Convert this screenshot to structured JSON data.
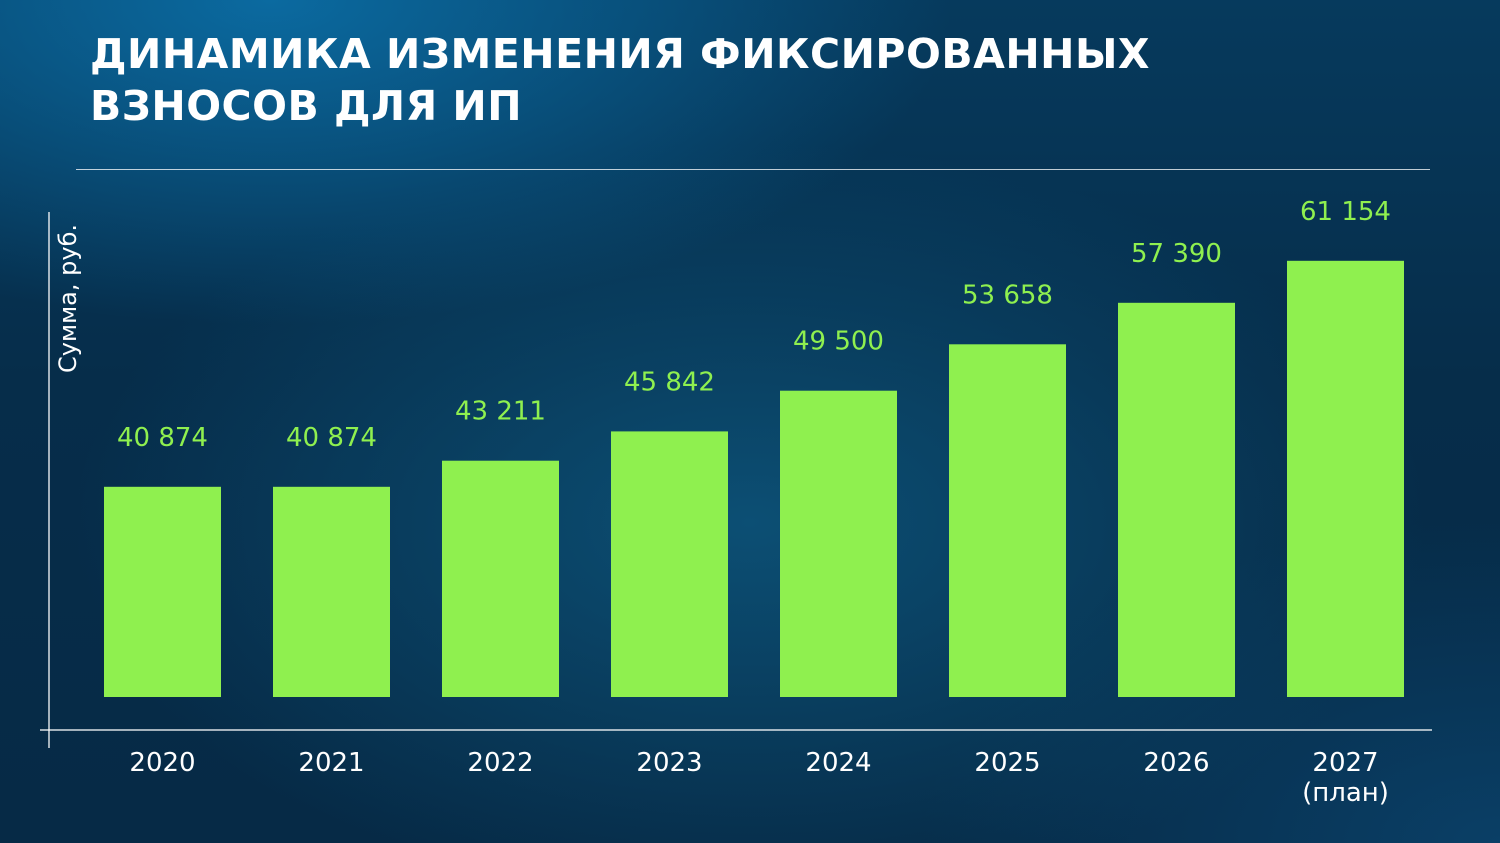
{
  "title_lines": [
    "ДИНАМИКА ИЗМЕНЕНИЯ ФИКСИРОВАННЫХ",
    "ВЗНОСОВ ДЛЯ ИП"
  ],
  "colors": {
    "bar": "#8ff04f",
    "value_label": "#8ff04f",
    "text": "#ffffff",
    "background": "#06304f"
  },
  "chart_data": {
    "type": "bar",
    "title": "ДИНАМИКА ИЗМЕНЕНИЯ ФИКСИРОВАННЫХ ВЗНОСОВ ДЛЯ ИП",
    "xlabel": "",
    "ylabel": "Сумма, руб.",
    "categories": [
      [
        "2020"
      ],
      [
        "2021"
      ],
      [
        "2022"
      ],
      [
        "2023"
      ],
      [
        "2024"
      ],
      [
        "2025"
      ],
      [
        "2026"
      ],
      [
        "2027",
        "(план)"
      ]
    ],
    "values": [
      40874,
      40874,
      43211,
      45842,
      49500,
      53658,
      57390,
      61154
    ],
    "value_labels": [
      "40 874",
      "40 874",
      "43 211",
      "45 842",
      "49 500",
      "53 658",
      "57 390",
      "61 154"
    ],
    "ylim": [
      22000,
      65000
    ],
    "grid": false,
    "legend": "none"
  }
}
